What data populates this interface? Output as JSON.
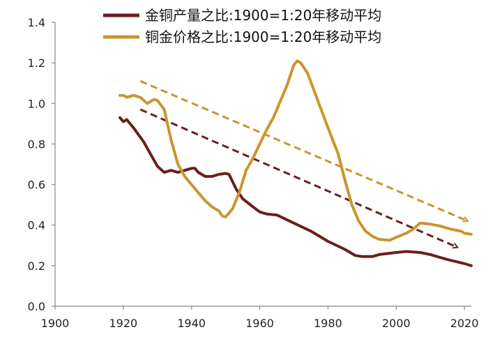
{
  "chart_data": {
    "type": "line",
    "title": "",
    "xlabel": "",
    "ylabel": "",
    "xlim": [
      1900,
      2022
    ],
    "ylim": [
      0,
      1.4
    ],
    "x_ticks": [
      "1900",
      "1920",
      "1940",
      "1960",
      "1980",
      "2000",
      "2020"
    ],
    "y_ticks": [
      "0.0",
      "0.2",
      "0.4",
      "0.6",
      "0.8",
      "1.0",
      "1.2",
      "1.4"
    ],
    "grid": false,
    "legend_position": "top-center",
    "series": [
      {
        "name": "金铜产量之比:1900=1:20年移动平均",
        "color": "#6b1e1e",
        "points": [
          [
            1919,
            0.93
          ],
          [
            1920,
            0.91
          ],
          [
            1921,
            0.92
          ],
          [
            1923,
            0.88
          ],
          [
            1926,
            0.81
          ],
          [
            1928,
            0.75
          ],
          [
            1930,
            0.69
          ],
          [
            1932,
            0.66
          ],
          [
            1934,
            0.67
          ],
          [
            1936,
            0.66
          ],
          [
            1938,
            0.67
          ],
          [
            1940,
            0.68
          ],
          [
            1941,
            0.68
          ],
          [
            1942,
            0.66
          ],
          [
            1944,
            0.64
          ],
          [
            1946,
            0.64
          ],
          [
            1948,
            0.65
          ],
          [
            1950,
            0.655
          ],
          [
            1951,
            0.65
          ],
          [
            1953,
            0.58
          ],
          [
            1955,
            0.53
          ],
          [
            1958,
            0.49
          ],
          [
            1960,
            0.465
          ],
          [
            1962,
            0.455
          ],
          [
            1965,
            0.45
          ],
          [
            1970,
            0.41
          ],
          [
            1975,
            0.37
          ],
          [
            1980,
            0.32
          ],
          [
            1985,
            0.28
          ],
          [
            1988,
            0.25
          ],
          [
            1990,
            0.245
          ],
          [
            1993,
            0.245
          ],
          [
            1995,
            0.255
          ],
          [
            2000,
            0.265
          ],
          [
            2003,
            0.27
          ],
          [
            2007,
            0.265
          ],
          [
            2010,
            0.255
          ],
          [
            2015,
            0.23
          ],
          [
            2020,
            0.21
          ],
          [
            2022,
            0.2
          ]
        ]
      },
      {
        "name": "铜金价格之比:1900=1:20年移动平均",
        "color": "#c9952d",
        "points": [
          [
            1919,
            1.04
          ],
          [
            1920,
            1.04
          ],
          [
            1921,
            1.03
          ],
          [
            1923,
            1.04
          ],
          [
            1925,
            1.03
          ],
          [
            1927,
            1.0
          ],
          [
            1929,
            1.02
          ],
          [
            1930,
            1.015
          ],
          [
            1932,
            0.97
          ],
          [
            1934,
            0.82
          ],
          [
            1936,
            0.7
          ],
          [
            1938,
            0.64
          ],
          [
            1940,
            0.6
          ],
          [
            1942,
            0.56
          ],
          [
            1944,
            0.52
          ],
          [
            1946,
            0.49
          ],
          [
            1948,
            0.47
          ],
          [
            1949,
            0.445
          ],
          [
            1950,
            0.44
          ],
          [
            1952,
            0.48
          ],
          [
            1954,
            0.56
          ],
          [
            1956,
            0.67
          ],
          [
            1958,
            0.73
          ],
          [
            1960,
            0.8
          ],
          [
            1962,
            0.87
          ],
          [
            1964,
            0.93
          ],
          [
            1966,
            1.01
          ],
          [
            1968,
            1.09
          ],
          [
            1969,
            1.14
          ],
          [
            1970,
            1.19
          ],
          [
            1971,
            1.21
          ],
          [
            1972,
            1.2
          ],
          [
            1974,
            1.15
          ],
          [
            1976,
            1.06
          ],
          [
            1978,
            0.97
          ],
          [
            1980,
            0.88
          ],
          [
            1983,
            0.75
          ],
          [
            1985,
            0.62
          ],
          [
            1987,
            0.5
          ],
          [
            1989,
            0.42
          ],
          [
            1991,
            0.37
          ],
          [
            1993,
            0.345
          ],
          [
            1995,
            0.33
          ],
          [
            1998,
            0.325
          ],
          [
            2000,
            0.34
          ],
          [
            2003,
            0.36
          ],
          [
            2005,
            0.38
          ],
          [
            2007,
            0.41
          ],
          [
            2010,
            0.405
          ],
          [
            2013,
            0.395
          ],
          [
            2016,
            0.38
          ],
          [
            2019,
            0.37
          ],
          [
            2020,
            0.36
          ],
          [
            2022,
            0.355
          ]
        ]
      }
    ],
    "trend_arrows": [
      {
        "color": "#c9952d",
        "from": [
          1925,
          1.11
        ],
        "to": [
          2021,
          0.42
        ]
      },
      {
        "color": "#6b1e1e",
        "from": [
          1925,
          0.97
        ],
        "to": [
          2018,
          0.29
        ]
      }
    ]
  }
}
